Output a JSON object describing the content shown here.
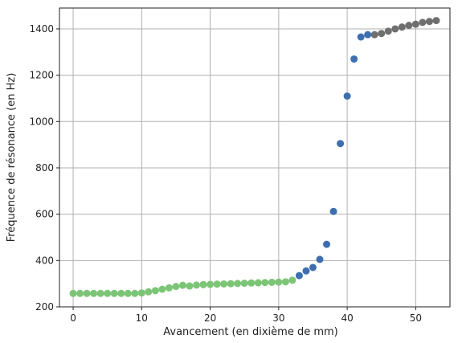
{
  "chart_data": {
    "type": "scatter",
    "xlabel": "Avancement (en dixième de mm)",
    "ylabel": "Fréquence de résonance (en Hz)",
    "xlim": [
      -2,
      55
    ],
    "ylim": [
      200,
      1490
    ],
    "x_ticks": [
      0,
      10,
      20,
      30,
      40,
      50
    ],
    "y_ticks": [
      200,
      400,
      600,
      800,
      1000,
      1200,
      1400
    ],
    "grid": true,
    "series": [
      {
        "color": "#7cc576",
        "points": [
          [
            0,
            258
          ],
          [
            1,
            258
          ],
          [
            2,
            258
          ],
          [
            3,
            258
          ],
          [
            4,
            258
          ],
          [
            5,
            258
          ],
          [
            6,
            258
          ],
          [
            7,
            258
          ],
          [
            8,
            258
          ],
          [
            9,
            258
          ],
          [
            10,
            260
          ],
          [
            11,
            265
          ],
          [
            12,
            270
          ],
          [
            13,
            276
          ],
          [
            14,
            282
          ],
          [
            15,
            288
          ],
          [
            16,
            293
          ],
          [
            17,
            290
          ],
          [
            18,
            294
          ],
          [
            19,
            296
          ],
          [
            20,
            297
          ],
          [
            21,
            298
          ],
          [
            22,
            299
          ],
          [
            23,
            300
          ],
          [
            24,
            301
          ],
          [
            25,
            302
          ],
          [
            26,
            303
          ],
          [
            27,
            304
          ],
          [
            28,
            305
          ],
          [
            29,
            306
          ],
          [
            30,
            307
          ],
          [
            31,
            308
          ],
          [
            32,
            315
          ]
        ]
      },
      {
        "color": "#3d6fb0",
        "points": [
          [
            33,
            335
          ],
          [
            34,
            355
          ],
          [
            35,
            370
          ],
          [
            36,
            405
          ],
          [
            37,
            470
          ],
          [
            38,
            612
          ],
          [
            39,
            905
          ],
          [
            40,
            1110
          ],
          [
            41,
            1270
          ],
          [
            42,
            1365
          ],
          [
            43,
            1375
          ]
        ]
      },
      {
        "color": "#6f6f6f",
        "points": [
          [
            44,
            1375
          ],
          [
            45,
            1380
          ],
          [
            46,
            1390
          ],
          [
            47,
            1400
          ],
          [
            48,
            1408
          ],
          [
            49,
            1415
          ],
          [
            50,
            1420
          ],
          [
            51,
            1428
          ],
          [
            52,
            1432
          ],
          [
            53,
            1436
          ]
        ]
      }
    ]
  }
}
